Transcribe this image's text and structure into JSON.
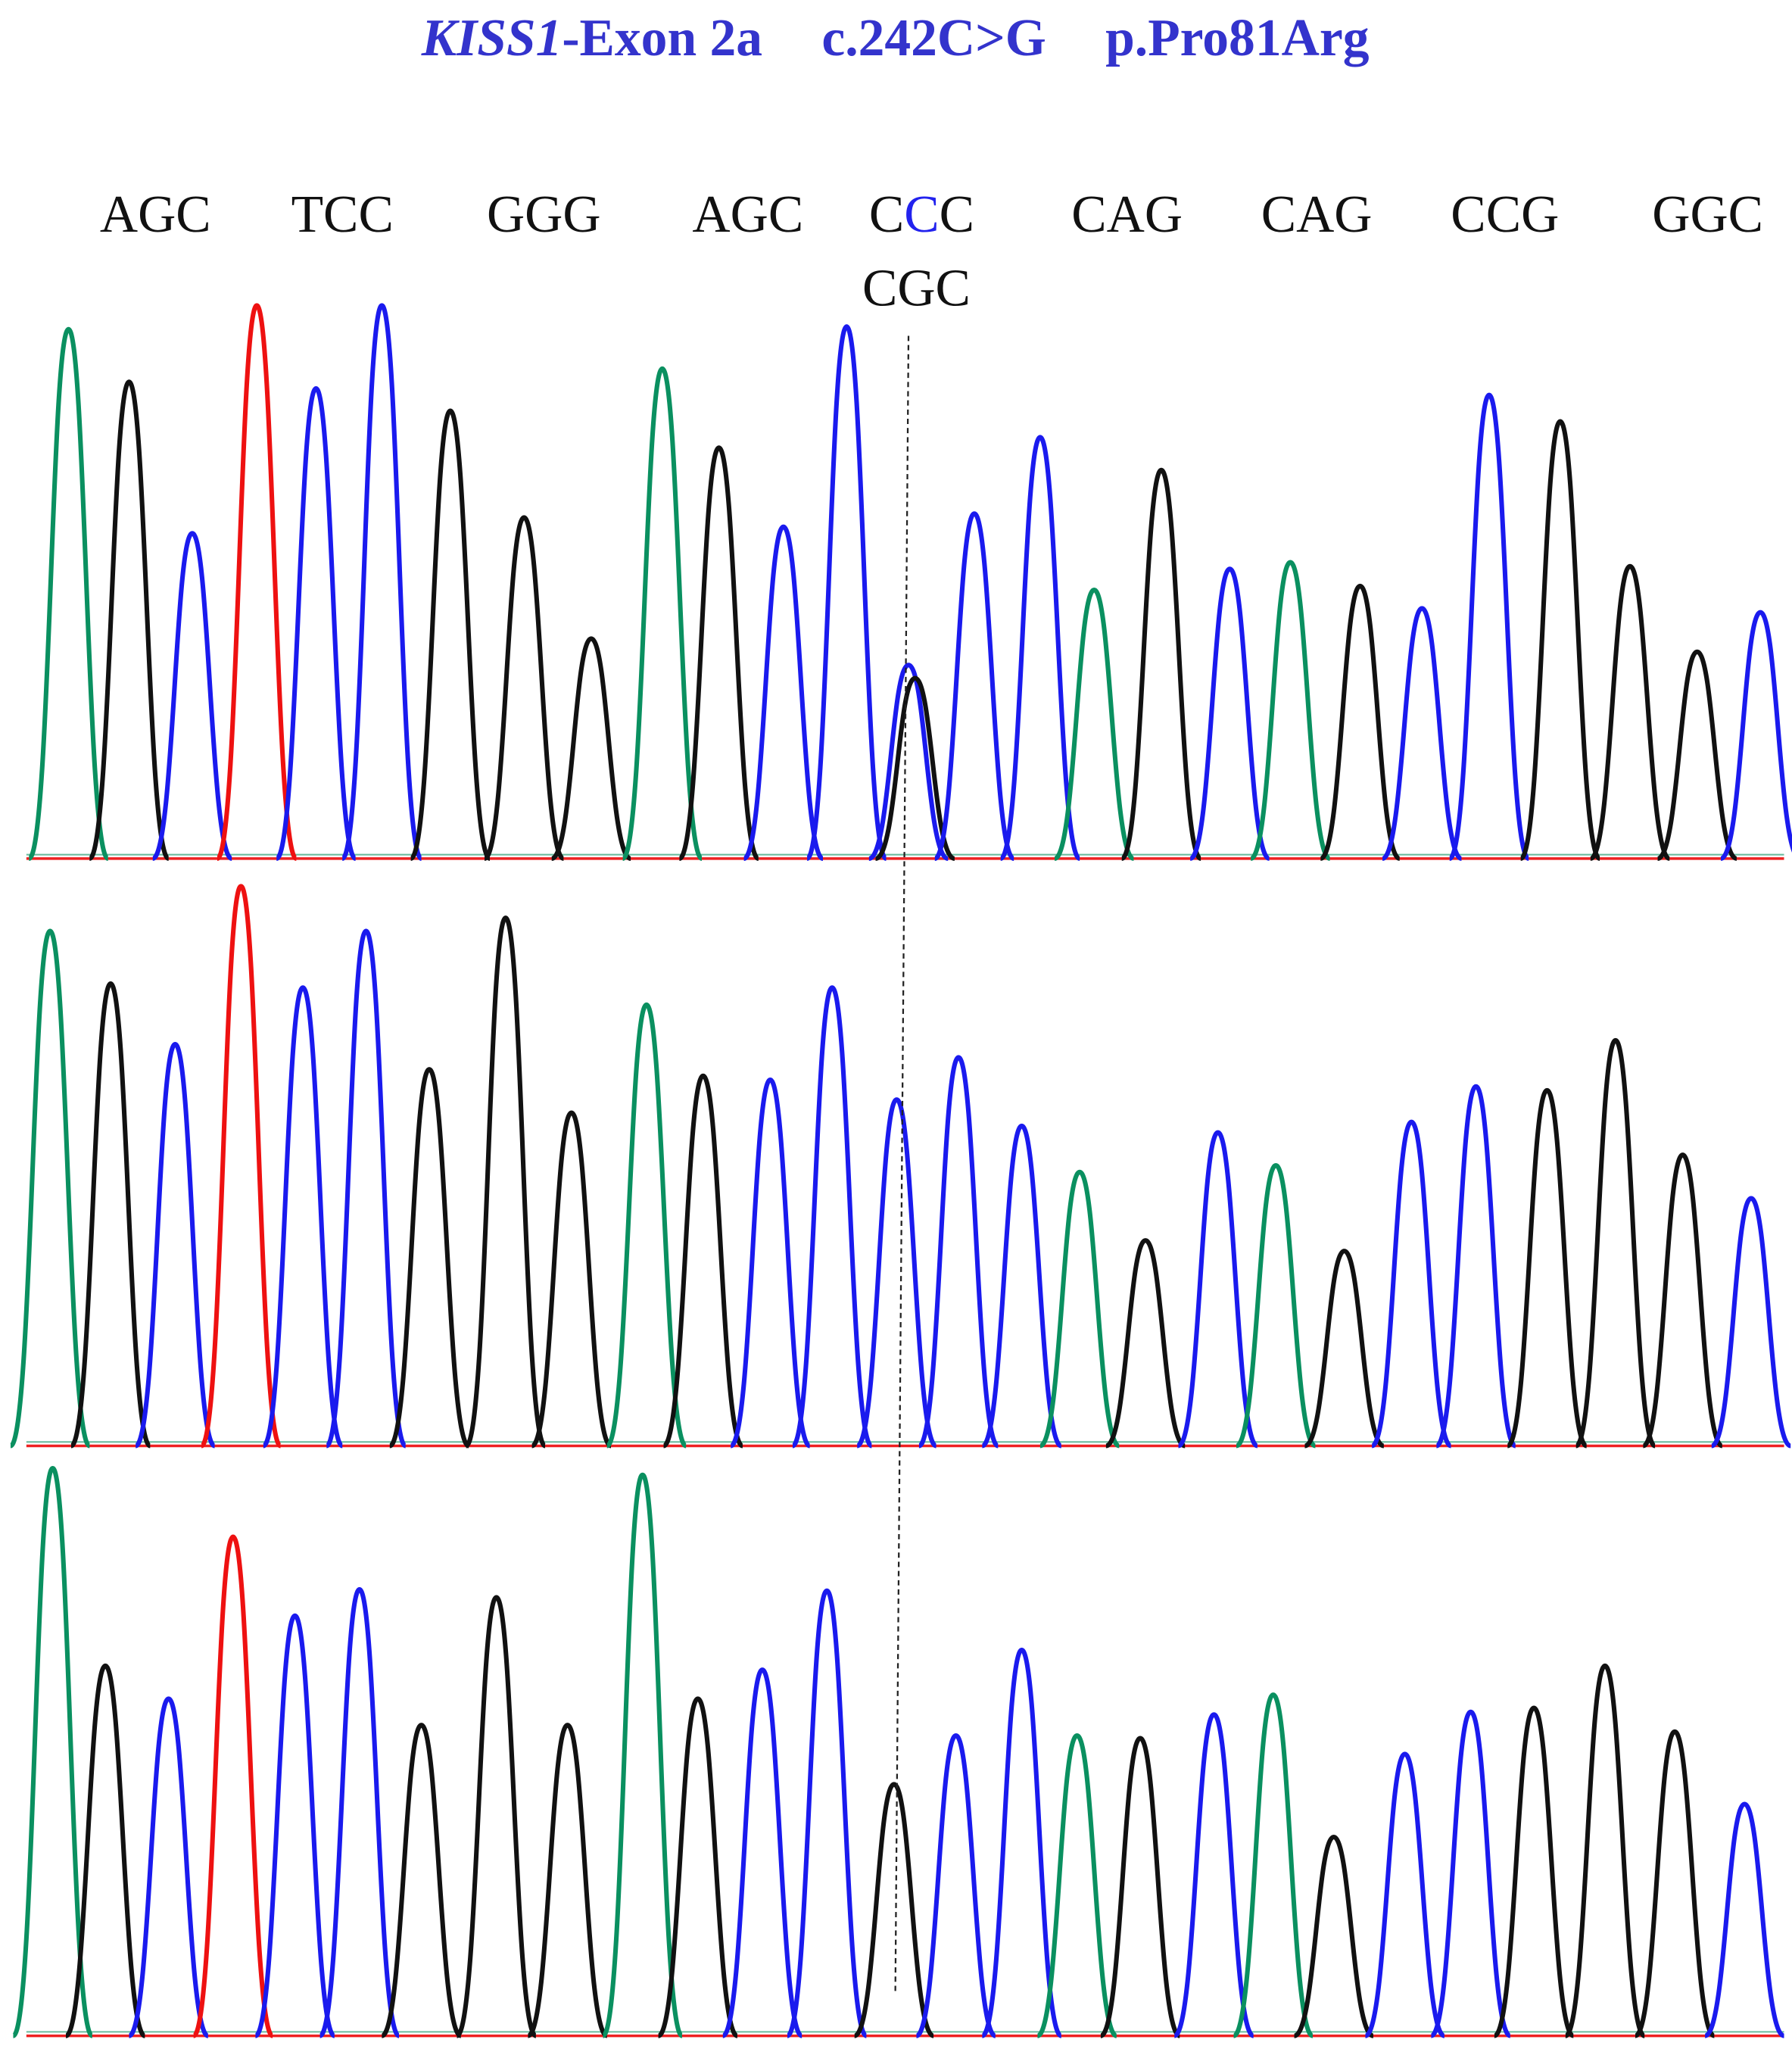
{
  "title": {
    "gene": "KISS1",
    "exon": "-Exon 2a",
    "cdna_change": "c.242C>G",
    "protein_change": "p.Pro81Arg"
  },
  "codons": [
    "AGC",
    "TCC",
    "GGG",
    "AGC",
    [
      "C",
      "C",
      "C"
    ],
    "CAG",
    "CAG",
    "CCG",
    "GGC"
  ],
  "variant_codon": "CGC"
}
